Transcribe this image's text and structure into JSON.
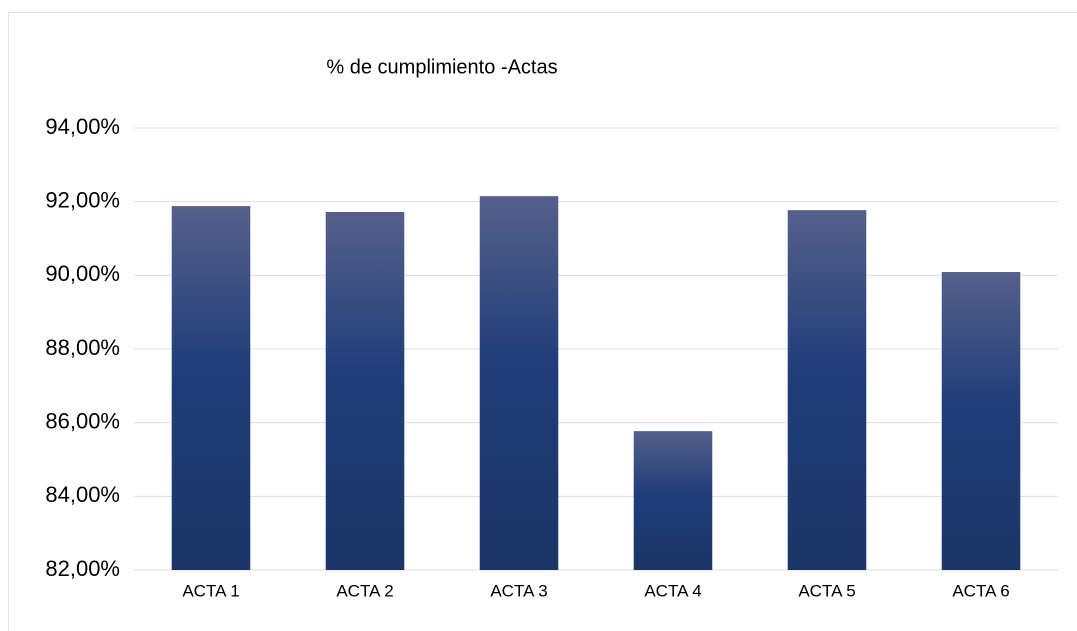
{
  "chart_data": {
    "type": "bar",
    "title": "% de cumplimiento -Actas",
    "categories": [
      "ACTA 1",
      "ACTA 2",
      "ACTA 3",
      "ACTA 4",
      "ACTA 5",
      "ACTA 6"
    ],
    "values": [
      91.88,
      91.72,
      92.15,
      85.77,
      91.77,
      90.09
    ],
    "color": "#1f3c78",
    "ylim": [
      82,
      94
    ],
    "yticks": [
      {
        "value": 82,
        "label": "82,00%"
      },
      {
        "value": 84,
        "label": "84,00%"
      },
      {
        "value": 86,
        "label": "86,00%"
      },
      {
        "value": 88,
        "label": "88,00%"
      },
      {
        "value": 90,
        "label": "90,00%"
      },
      {
        "value": 92,
        "label": "92,00%"
      },
      {
        "value": 94,
        "label": "94,00%"
      }
    ],
    "grid": true
  }
}
